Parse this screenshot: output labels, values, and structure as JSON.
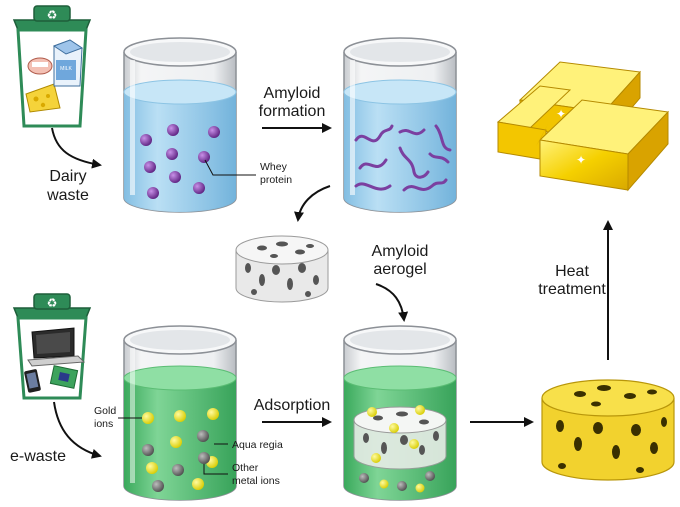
{
  "labels": {
    "dairy_waste": [
      "Dairy",
      "waste"
    ],
    "e_waste": "e-waste",
    "amyloid_formation": [
      "Amyloid",
      "formation"
    ],
    "whey_protein": [
      "Whey",
      "protein"
    ],
    "amyloid_aerogel": [
      "Amyloid",
      "aerogel"
    ],
    "heat_treatment": [
      "Heat",
      "treatment"
    ],
    "adsorption": "Adsorption",
    "gold_ions": [
      "Gold",
      "ions"
    ],
    "aqua_regia": "Aqua regia",
    "other_metal_ions": [
      "Other",
      "metal ions"
    ],
    "milk_carton": "MILK"
  },
  "icons": [
    "recycle-bin-icon",
    "milk-carton-icon",
    "cheese-icon",
    "laptop-icon",
    "phone-icon",
    "circuit-board-icon",
    "gold-bar-icon"
  ],
  "colors": {
    "bin_green": "#2e8b57",
    "protein_purple": "#7b3fa0",
    "water_blue": "#9fd0ec",
    "regia_green": "#5bc47a",
    "gold_ion": "#e9e020",
    "metal_ion": "#7a7a7a",
    "gold": "#f0c419",
    "sponge_yellow": "#f2d22e"
  }
}
